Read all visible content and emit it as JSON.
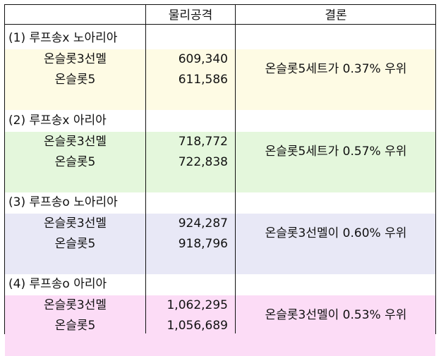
{
  "header": {
    "col_value": "물리공격",
    "col_result": "결론"
  },
  "groups": [
    {
      "title": "(1) 루프송x 노아리아",
      "color": "#fefbe4",
      "rows": [
        {
          "label": "온슬롯3선멜",
          "value": "609,340"
        },
        {
          "label": "온슬롯5",
          "value": "611,586"
        }
      ],
      "conclusion": "온슬롯5세트가 0.37% 우위"
    },
    {
      "title": "(2) 루프송x 아리아",
      "color": "#e4f7dc",
      "rows": [
        {
          "label": "온슬롯3선멜",
          "value": "718,772"
        },
        {
          "label": "온슬롯5",
          "value": "722,838"
        }
      ],
      "conclusion": "온슬롯5세트가 0.57% 우위"
    },
    {
      "title": "(3) 루프송o 노아리아",
      "color": "#e8e8f6",
      "rows": [
        {
          "label": "온슬롯3선멜",
          "value": "924,287"
        },
        {
          "label": "온슬롯5",
          "value": "918,796"
        }
      ],
      "conclusion": "온슬롯3선멜이 0.60% 우위"
    },
    {
      "title": "(4) 루프송o 아리아",
      "color": "#fcdcf6",
      "rows": [
        {
          "label": "온슬롯3선멜",
          "value": "1,062,295"
        },
        {
          "label": "온슬롯5",
          "value": "1,056,689"
        }
      ],
      "conclusion": "온슬롯3선멜이 0.53% 우위"
    }
  ]
}
